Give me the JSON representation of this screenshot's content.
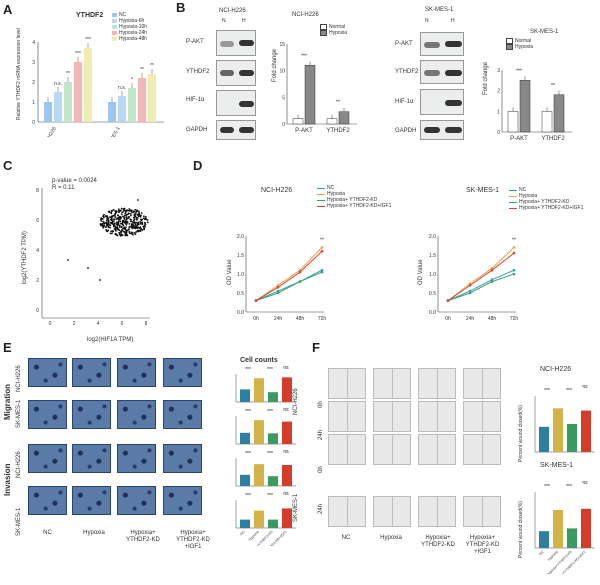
{
  "panels": {
    "a": "A",
    "b": "B",
    "c": "C",
    "d": "D",
    "e": "E",
    "f": "F"
  },
  "panel_a": {
    "title": "YTHDF2",
    "ylabel": "Relative YTHDF2 mRNA expression level",
    "cells": [
      "NCI-H226",
      "SK-MES-1"
    ],
    "legend": [
      "NC",
      "Hypoxia-6h",
      "Hypoxia-10h",
      "Hypoxia-24h",
      "Hypoxia-48h"
    ],
    "colors": [
      "#9ec5ea",
      "#b8d9f5",
      "#c4e6c8",
      "#f4b7b7",
      "#f3ecb0"
    ],
    "sig": [
      "n.s.",
      "**",
      "***",
      "***",
      "n.s.",
      "*",
      "**",
      "**"
    ],
    "yticks": [
      "0",
      "1",
      "2",
      "3",
      "4"
    ],
    "chart_data": {
      "type": "bar",
      "categories": [
        "NCI-H226",
        "SK-MES-1"
      ],
      "series": [
        {
          "name": "NC",
          "values": [
            1.0,
            1.0
          ]
        },
        {
          "name": "Hypoxia-6h",
          "values": [
            1.5,
            1.3
          ]
        },
        {
          "name": "Hypoxia-10h",
          "values": [
            2.0,
            1.7
          ]
        },
        {
          "name": "Hypoxia-24h",
          "values": [
            3.0,
            2.2
          ]
        },
        {
          "name": "Hypoxia-48h",
          "values": [
            3.7,
            2.4
          ]
        }
      ],
      "ylim": [
        0,
        4
      ]
    }
  },
  "panel_b": {
    "cell1": "NCI-H226",
    "cell2": "SK-MES-1",
    "lanes1": [
      "N",
      "H"
    ],
    "lanes2": [
      "N",
      "H"
    ],
    "blot_labels": [
      "P-AKT",
      "YTHDF2",
      "HIF-1α",
      "GAPDH"
    ],
    "chart_ylabel": "Fold change",
    "legend": [
      "Normal",
      "Hypoxia"
    ],
    "legend_colors": [
      "#ffffff",
      "#888888"
    ],
    "sig1": [
      "***",
      "**"
    ],
    "sig2": [
      "***",
      "**"
    ],
    "chart1": {
      "type": "bar",
      "categories": [
        "P-AKT",
        "YTHDF2"
      ],
      "series": [
        {
          "name": "Normal",
          "values": [
            1.0,
            1.0
          ]
        },
        {
          "name": "Hypoxia",
          "values": [
            11.0,
            2.3
          ]
        }
      ],
      "ylim": [
        0,
        15
      ],
      "yticks": [
        "0",
        "5",
        "10",
        "15"
      ]
    },
    "chart2": {
      "type": "bar",
      "categories": [
        "P-AKT",
        "YTHDF2"
      ],
      "series": [
        {
          "name": "Normal",
          "values": [
            1.0,
            1.0
          ]
        },
        {
          "name": "Hypoxia",
          "values": [
            2.5,
            1.8
          ]
        }
      ],
      "ylim": [
        0,
        3
      ],
      "yticks": [
        "0",
        "1",
        "2",
        "3"
      ]
    }
  },
  "panel_c": {
    "pvalue": "p-value = 0.0024",
    "r": "R = 0.11",
    "xlabel": "log2(HIF1A TPM)",
    "ylabel": "log2(YTHDF2 TPM)",
    "xticks": [
      "0",
      "2",
      "4",
      "6",
      "8"
    ],
    "yticks": [
      "0",
      "2",
      "4",
      "6",
      "8"
    ]
  },
  "panel_d": {
    "charts": [
      {
        "title": "NCI-H226"
      },
      {
        "title": "SK-MES-1"
      }
    ],
    "ylabel": "OD Value",
    "legend1": [
      "NC",
      "Hypoxia",
      "Hypoxia+ YTHDF2-KD",
      "Hypoxia+ YTHDF2-KD+IGF1"
    ],
    "legend2": [
      "NC",
      "Hypoxia",
      "Hypoxia+ YTHDF2-KD",
      "Hypoxia+ YTHDF2-KD+IGF1"
    ],
    "colors": [
      "#2aa0b8",
      "#e6a24a",
      "#3aa36a",
      "#d8442e"
    ],
    "xticks1": [
      "0h",
      "24h",
      "48h",
      "72h"
    ],
    "xticks2": [
      "0h",
      "24h",
      "48h",
      "72h"
    ],
    "yticks": [
      "0.0",
      "0.5",
      "1.0",
      "1.5",
      "2.0"
    ],
    "sig": [
      "**",
      "**"
    ],
    "chart_data": [
      {
        "type": "line",
        "x": [
          "0h",
          "24h",
          "48h",
          "72h"
        ],
        "series": [
          {
            "name": "NC",
            "values": [
              0.3,
              0.55,
              0.8,
              1.1
            ]
          },
          {
            "name": "Hypoxia",
            "values": [
              0.3,
              0.7,
              1.1,
              1.7
            ]
          },
          {
            "name": "Hypoxia+ YTHDF2-KD",
            "values": [
              0.3,
              0.5,
              0.8,
              1.05
            ]
          },
          {
            "name": "Hypoxia+ YTHDF2-KD+IGF1",
            "values": [
              0.3,
              0.65,
              1.05,
              1.6
            ]
          }
        ],
        "ylim": [
          0,
          2
        ]
      },
      {
        "type": "line",
        "x": [
          "0h",
          "24h",
          "48h",
          "72h"
        ],
        "series": [
          {
            "name": "NC",
            "values": [
              0.3,
              0.55,
              0.85,
              1.1
            ]
          },
          {
            "name": "Hypoxia",
            "values": [
              0.3,
              0.75,
              1.15,
              1.7
            ]
          },
          {
            "name": "Hypoxia+ YTHDF2-KD",
            "values": [
              0.3,
              0.5,
              0.8,
              1.0
            ]
          },
          {
            "name": "Hypoxia+ YTHDF2-KD+IGF1",
            "values": [
              0.3,
              0.7,
              1.1,
              1.55
            ]
          }
        ],
        "ylim": [
          0,
          2
        ]
      }
    ]
  },
  "panel_e": {
    "row_labels": [
      "NCI-H226",
      "SK-MES-1",
      "NCI-H226",
      "SK-MES-1"
    ],
    "group_labels": [
      "Migration",
      "Invasion"
    ],
    "col_labels": [
      "NC",
      "Hypoxia",
      "Hypoxia+\nYTHDF2-KD",
      "Hypoxia+\nYTHDF2-KD\n+IGF1"
    ],
    "chart_title": "Cell counts",
    "sig_rows": [
      [
        "***",
        "***",
        "ns"
      ],
      [
        "***",
        "***",
        "ns"
      ],
      [
        "***",
        "***",
        "ns"
      ],
      [
        "***",
        "***",
        "ns"
      ]
    ],
    "bar_colors": [
      "#2f7fa0",
      "#d3b24a",
      "#3b9a62",
      "#d43d2a"
    ],
    "chart_data": [
      {
        "type": "bar",
        "categories": [
          "NC",
          "Hypoxia",
          "Hypoxia+YTHDF2-KD",
          "Hypoxia+YTHDF2-KD+IGF1"
        ],
        "values": [
          45,
          85,
          35,
          88
        ]
      },
      {
        "type": "bar",
        "categories": [
          "NC",
          "Hypoxia",
          "Hypoxia+YTHDF2-KD",
          "Hypoxia+YTHDF2-KD+IGF1"
        ],
        "values": [
          40,
          85,
          38,
          80
        ]
      },
      {
        "type": "bar",
        "categories": [
          "NC",
          "Hypoxia",
          "Hypoxia+YTHDF2-KD",
          "Hypoxia+YTHDF2-KD+IGF1"
        ],
        "values": [
          40,
          78,
          35,
          75
        ]
      },
      {
        "type": "bar",
        "categories": [
          "NC",
          "Hypoxia",
          "Hypoxia+YTHDF2-KD",
          "Hypoxia+YTHDF2-KD+IGF1"
        ],
        "values": [
          30,
          62,
          30,
          70
        ]
      }
    ]
  },
  "panel_f": {
    "row_labels": [
      "0h",
      "24h",
      "0h",
      "24h"
    ],
    "cell_labels": [
      "NCI-H226",
      "SK-MES-1"
    ],
    "col_labels": [
      "NC",
      "Hypoxia",
      "Hypoxia+\nYTHDF2-KD",
      "Hypoxia+\nYTHDF2-KD\n+IGF1"
    ],
    "chart_titles": [
      "NCI-H226",
      "SK-MES-1"
    ],
    "chart_ylabel": "Percent wound closed(%)",
    "sig_rows": [
      [
        "***",
        "***",
        "ns"
      ],
      [
        "***",
        "***",
        "ns"
      ]
    ],
    "bar_colors": [
      "#2f7fa0",
      "#d3b24a",
      "#3b9a62",
      "#d43d2a"
    ],
    "chart_data": [
      {
        "type": "bar",
        "categories": [
          "NC",
          "Hypoxia",
          "Hypoxia+YTHDF2-KD",
          "Hypoxia+YTHDF2-KD+IGF1"
        ],
        "values": [
          45,
          78,
          50,
          74
        ]
      },
      {
        "type": "bar",
        "categories": [
          "NC",
          "Hypoxia",
          "Hypoxia+YTHDF2-KD",
          "Hypoxia+YTHDF2-KD+IGF1"
        ],
        "values": [
          30,
          68,
          35,
          70
        ]
      }
    ]
  }
}
